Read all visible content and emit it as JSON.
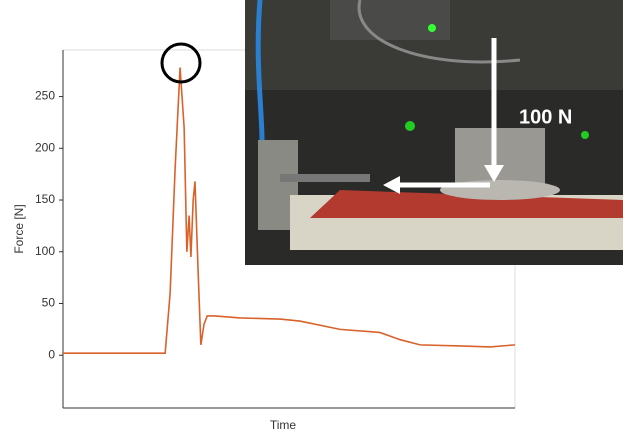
{
  "chart_data": {
    "type": "line",
    "xlabel": "Time",
    "ylabel": "Force [N]",
    "annotation": "100 N",
    "xlim": [
      0,
      100
    ],
    "ylim": [
      -51,
      295
    ],
    "yticks": [
      0,
      50,
      100,
      150,
      200,
      250
    ],
    "x": [
      0,
      22.6,
      23.7,
      24.8,
      25.9,
      26.8,
      27.4,
      27.9,
      28.3,
      28.8,
      29.2,
      29.9,
      30.5,
      31.2,
      31.9,
      33.6,
      39.2,
      48,
      52.4,
      61.3,
      70.1,
      74.6,
      79,
      87.8,
      94.5,
      100
    ],
    "series": [
      {
        "color": "#d9622b",
        "values": [
          2,
          2,
          60,
          180,
          278,
          220,
          100,
          135,
          95,
          150,
          168,
          80,
          10,
          30,
          38,
          38,
          36,
          35,
          33,
          25,
          22,
          15,
          10,
          9,
          8,
          10
        ]
      }
    ]
  }
}
